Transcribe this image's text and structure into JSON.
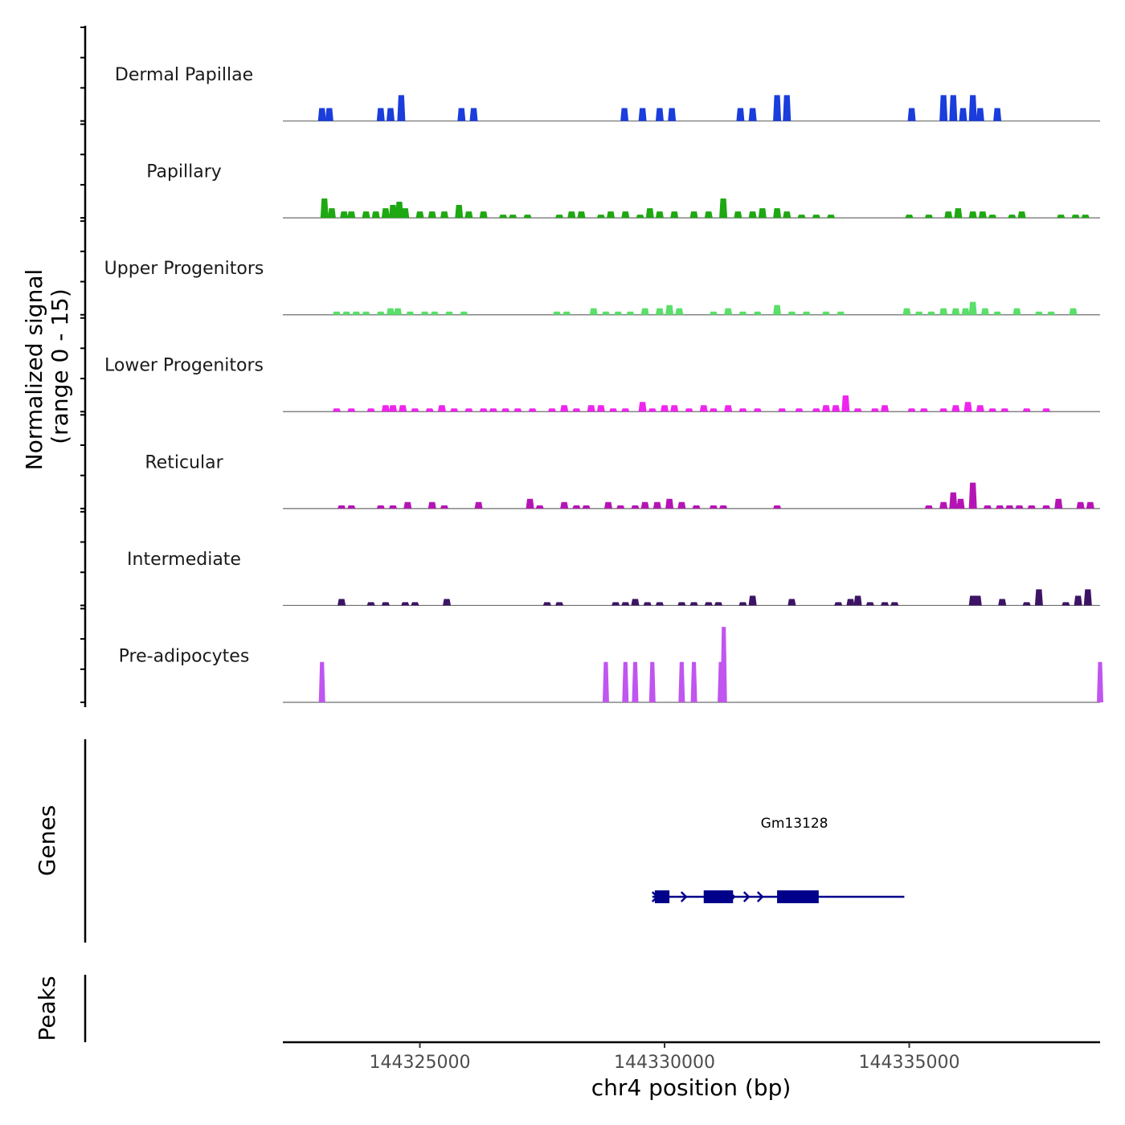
{
  "chart_data": {
    "type": "area",
    "title": "",
    "xlabel": "chr4 position (bp)",
    "ylabel": "Normalized signal\n(range 0 - 15)",
    "ylabel_lines": [
      "Normalized signal",
      "(range 0 - 15)"
    ],
    "ylim": [
      0,
      15
    ],
    "xlim": [
      144322200,
      144338900
    ],
    "xticks": [
      144325000,
      144330000,
      144335000
    ],
    "xtick_labels": [
      "144325000",
      "144330000",
      "144335000"
    ],
    "grid": false,
    "legend": "none",
    "tracks": [
      {
        "name": "Dermal Papillae",
        "color": "#1a3ddb",
        "peaks": [
          [
            144323000,
            4
          ],
          [
            144323150,
            4
          ],
          [
            144324200,
            4
          ],
          [
            144324400,
            4
          ],
          [
            144324620,
            8
          ],
          [
            144325850,
            4
          ],
          [
            144326100,
            4
          ],
          [
            144329180,
            4
          ],
          [
            144329550,
            4
          ],
          [
            144329900,
            4
          ],
          [
            144330150,
            4
          ],
          [
            144331550,
            4
          ],
          [
            144331800,
            4
          ],
          [
            144332300,
            8
          ],
          [
            144332500,
            8
          ],
          [
            144335050,
            4
          ],
          [
            144335700,
            8
          ],
          [
            144335900,
            8
          ],
          [
            144336100,
            4
          ],
          [
            144336300,
            8
          ],
          [
            144336450,
            4
          ],
          [
            144336800,
            4
          ]
        ]
      },
      {
        "name": "Papillary",
        "color": "#1ea812",
        "peaks": [
          [
            144323050,
            6
          ],
          [
            144323200,
            3
          ],
          [
            144323450,
            2
          ],
          [
            144323600,
            2
          ],
          [
            144323900,
            2
          ],
          [
            144324100,
            2
          ],
          [
            144324300,
            3
          ],
          [
            144324450,
            4
          ],
          [
            144324580,
            5
          ],
          [
            144324700,
            3
          ],
          [
            144325000,
            2
          ],
          [
            144325250,
            2
          ],
          [
            144325500,
            2
          ],
          [
            144325800,
            4
          ],
          [
            144326000,
            2
          ],
          [
            144326300,
            2
          ],
          [
            144326700,
            1
          ],
          [
            144326900,
            1
          ],
          [
            144327200,
            1
          ],
          [
            144327850,
            1
          ],
          [
            144328100,
            2
          ],
          [
            144328300,
            2
          ],
          [
            144328700,
            1
          ],
          [
            144328900,
            2
          ],
          [
            144329200,
            2
          ],
          [
            144329500,
            1
          ],
          [
            144329700,
            3
          ],
          [
            144329900,
            2
          ],
          [
            144330200,
            2
          ],
          [
            144330600,
            2
          ],
          [
            144330900,
            2
          ],
          [
            144331200,
            6
          ],
          [
            144331500,
            2
          ],
          [
            144331800,
            2
          ],
          [
            144332000,
            3
          ],
          [
            144332300,
            3
          ],
          [
            144332500,
            2
          ],
          [
            144332800,
            1
          ],
          [
            144333100,
            1
          ],
          [
            144333400,
            1
          ],
          [
            144335000,
            1
          ],
          [
            144335400,
            1
          ],
          [
            144335800,
            2
          ],
          [
            144336000,
            3
          ],
          [
            144336300,
            2
          ],
          [
            144336500,
            2
          ],
          [
            144336700,
            1
          ],
          [
            144337100,
            1
          ],
          [
            144337300,
            2
          ],
          [
            144338100,
            1
          ],
          [
            144338400,
            1
          ],
          [
            144338600,
            1
          ]
        ]
      },
      {
        "name": "Upper Progenitors",
        "color": "#5adf6a",
        "peaks": [
          [
            144323300,
            1
          ],
          [
            144323500,
            1
          ],
          [
            144323700,
            1
          ],
          [
            144323900,
            1
          ],
          [
            144324200,
            1
          ],
          [
            144324400,
            2
          ],
          [
            144324550,
            2
          ],
          [
            144324800,
            1
          ],
          [
            144325100,
            1
          ],
          [
            144325300,
            1
          ],
          [
            144325600,
            1
          ],
          [
            144325900,
            1
          ],
          [
            144327800,
            1
          ],
          [
            144328000,
            1
          ],
          [
            144328550,
            2
          ],
          [
            144328800,
            1
          ],
          [
            144329050,
            1
          ],
          [
            144329300,
            1
          ],
          [
            144329600,
            2
          ],
          [
            144329900,
            2
          ],
          [
            144330100,
            3
          ],
          [
            144330300,
            2
          ],
          [
            144331000,
            1
          ],
          [
            144331300,
            2
          ],
          [
            144331600,
            1
          ],
          [
            144331900,
            1
          ],
          [
            144332300,
            3
          ],
          [
            144332600,
            1
          ],
          [
            144332900,
            1
          ],
          [
            144333300,
            1
          ],
          [
            144333600,
            1
          ],
          [
            144334950,
            2
          ],
          [
            144335200,
            1
          ],
          [
            144335450,
            1
          ],
          [
            144335700,
            2
          ],
          [
            144335950,
            2
          ],
          [
            144336150,
            2
          ],
          [
            144336300,
            4
          ],
          [
            144336550,
            2
          ],
          [
            144336800,
            1
          ],
          [
            144337200,
            2
          ],
          [
            144337650,
            1
          ],
          [
            144337900,
            1
          ],
          [
            144338350,
            2
          ]
        ]
      },
      {
        "name": "Lower Progenitors",
        "color": "#ee25ee",
        "peaks": [
          [
            144323300,
            1
          ],
          [
            144323600,
            1
          ],
          [
            144324000,
            1
          ],
          [
            144324300,
            2
          ],
          [
            144324450,
            2
          ],
          [
            144324650,
            2
          ],
          [
            144324900,
            1
          ],
          [
            144325200,
            1
          ],
          [
            144325450,
            2
          ],
          [
            144325700,
            1
          ],
          [
            144326000,
            1
          ],
          [
            144326300,
            1
          ],
          [
            144326500,
            1
          ],
          [
            144326750,
            1
          ],
          [
            144327000,
            1
          ],
          [
            144327300,
            1
          ],
          [
            144327700,
            1
          ],
          [
            144327950,
            2
          ],
          [
            144328200,
            1
          ],
          [
            144328500,
            2
          ],
          [
            144328700,
            2
          ],
          [
            144328950,
            1
          ],
          [
            144329200,
            1
          ],
          [
            144329550,
            3
          ],
          [
            144329750,
            1
          ],
          [
            144330000,
            2
          ],
          [
            144330200,
            2
          ],
          [
            144330500,
            1
          ],
          [
            144330800,
            2
          ],
          [
            144331000,
            1
          ],
          [
            144331300,
            2
          ],
          [
            144331600,
            1
          ],
          [
            144331900,
            1
          ],
          [
            144332400,
            1
          ],
          [
            144332750,
            1
          ],
          [
            144333100,
            1
          ],
          [
            144333300,
            2
          ],
          [
            144333500,
            2
          ],
          [
            144333700,
            5
          ],
          [
            144333950,
            1
          ],
          [
            144334300,
            1
          ],
          [
            144334500,
            2
          ],
          [
            144335050,
            1
          ],
          [
            144335300,
            1
          ],
          [
            144335700,
            1
          ],
          [
            144335950,
            2
          ],
          [
            144336200,
            3
          ],
          [
            144336450,
            2
          ],
          [
            144336700,
            1
          ],
          [
            144336950,
            1
          ],
          [
            144337400,
            1
          ],
          [
            144337800,
            1
          ]
        ]
      },
      {
        "name": "Reticular",
        "color": "#b514b5",
        "peaks": [
          [
            144323400,
            1
          ],
          [
            144323600,
            1
          ],
          [
            144324200,
            1
          ],
          [
            144324450,
            1
          ],
          [
            144324750,
            2
          ],
          [
            144325250,
            2
          ],
          [
            144325500,
            1
          ],
          [
            144326200,
            2
          ],
          [
            144327250,
            3
          ],
          [
            144327450,
            1
          ],
          [
            144327950,
            2
          ],
          [
            144328200,
            1
          ],
          [
            144328400,
            1
          ],
          [
            144328850,
            2
          ],
          [
            144329100,
            1
          ],
          [
            144329400,
            1
          ],
          [
            144329600,
            2
          ],
          [
            144329850,
            2
          ],
          [
            144330100,
            3
          ],
          [
            144330350,
            2
          ],
          [
            144330650,
            1
          ],
          [
            144331000,
            1
          ],
          [
            144331200,
            1
          ],
          [
            144332300,
            1
          ],
          [
            144335400,
            1
          ],
          [
            144335700,
            2
          ],
          [
            144335900,
            5
          ],
          [
            144336050,
            3
          ],
          [
            144336300,
            8
          ],
          [
            144336600,
            1
          ],
          [
            144336850,
            1
          ],
          [
            144337050,
            1
          ],
          [
            144337250,
            1
          ],
          [
            144337500,
            1
          ],
          [
            144337800,
            1
          ],
          [
            144338050,
            3
          ],
          [
            144338500,
            2
          ],
          [
            144338700,
            2
          ]
        ]
      },
      {
        "name": "Intermediate",
        "color": "#3d1465",
        "peaks": [
          [
            144323400,
            2
          ],
          [
            144324000,
            1
          ],
          [
            144324300,
            1
          ],
          [
            144324700,
            1
          ],
          [
            144324900,
            1
          ],
          [
            144325550,
            2
          ],
          [
            144327600,
            1
          ],
          [
            144327850,
            1
          ],
          [
            144329000,
            1
          ],
          [
            144329200,
            1
          ],
          [
            144329400,
            2
          ],
          [
            144329650,
            1
          ],
          [
            144329900,
            1
          ],
          [
            144330350,
            1
          ],
          [
            144330600,
            1
          ],
          [
            144330900,
            1
          ],
          [
            144331100,
            1
          ],
          [
            144331600,
            1
          ],
          [
            144331800,
            3
          ],
          [
            144332600,
            2
          ],
          [
            144333550,
            1
          ],
          [
            144333800,
            2
          ],
          [
            144333950,
            3
          ],
          [
            144334200,
            1
          ],
          [
            144334500,
            1
          ],
          [
            144334700,
            1
          ],
          [
            144336300,
            3
          ],
          [
            144336400,
            3
          ],
          [
            144336900,
            2
          ],
          [
            144337400,
            1
          ],
          [
            144337650,
            5
          ],
          [
            144338200,
            1
          ],
          [
            144338450,
            3
          ],
          [
            144338650,
            5
          ]
        ]
      },
      {
        "name": "Pre-adipocytes",
        "color": "#c055f0",
        "peaks": [
          [
            144323000,
            15
          ],
          [
            144328800,
            15
          ],
          [
            144329200,
            15
          ],
          [
            144329400,
            15
          ],
          [
            144329750,
            15
          ],
          [
            144330350,
            15
          ],
          [
            144330600,
            15
          ],
          [
            144331150,
            15
          ],
          [
            144331210,
            28
          ],
          [
            144338900,
            15
          ]
        ]
      }
    ],
    "genes": [
      {
        "name": "Gm13128",
        "strand": "+",
        "start": 144329750,
        "end": 144334900,
        "exons": [
          [
            144329800,
            144330100
          ],
          [
            144330800,
            144331400
          ],
          [
            144332300,
            144333150
          ]
        ]
      }
    ],
    "panel_labels": {
      "genes": "Genes",
      "peaks": "Peaks"
    }
  }
}
